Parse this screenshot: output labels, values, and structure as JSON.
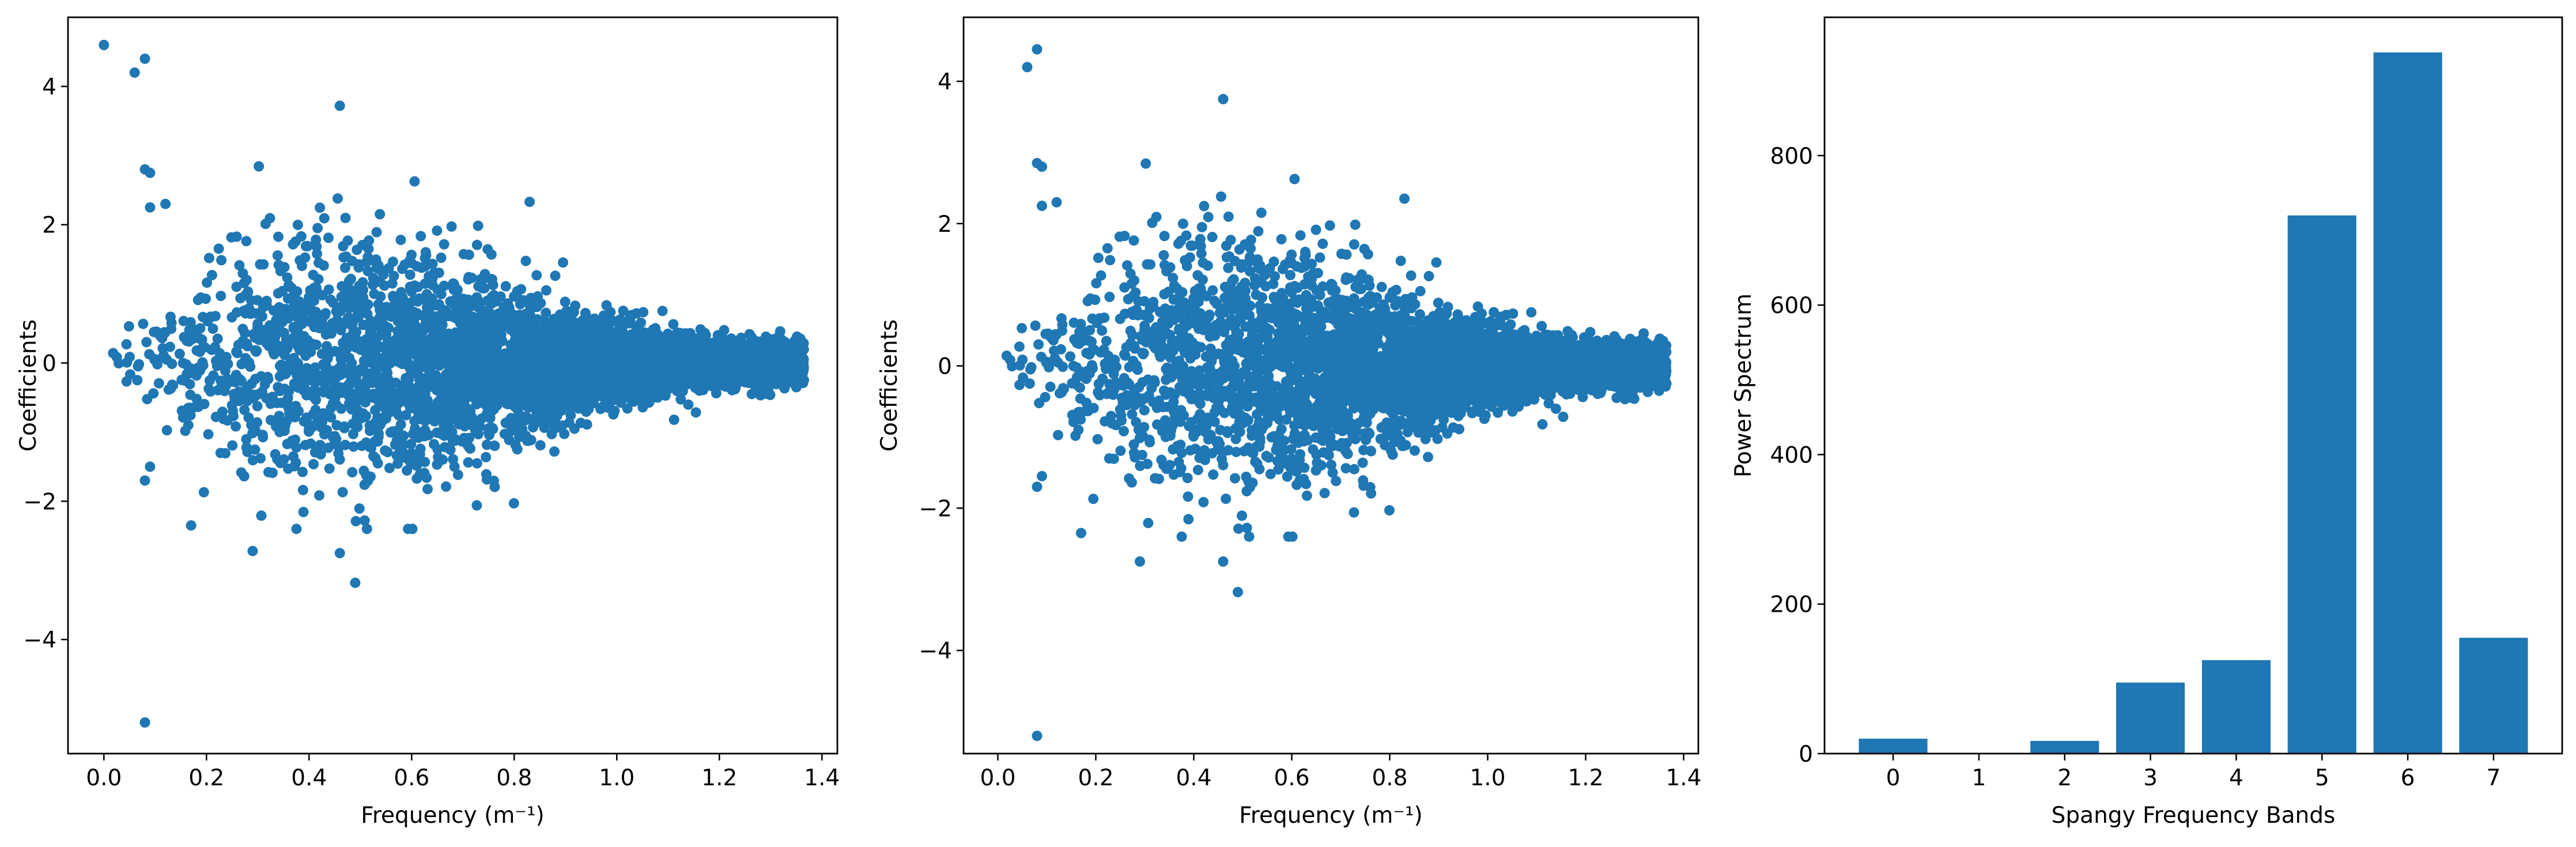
{
  "chart_data": [
    {
      "type": "scatter",
      "xlabel": "Frequency (m⁻¹)",
      "ylabel": "Coefficients",
      "xlim": [
        -0.07,
        1.43
      ],
      "ylim": [
        -5.65,
        5.0
      ],
      "xticks": [
        "0.0",
        "0.2",
        "0.4",
        "0.6",
        "0.8",
        "1.0",
        "1.2",
        "1.4"
      ],
      "yticks": [
        "−4",
        "−2",
        "0",
        "2",
        "4"
      ],
      "color": "#1f77b4",
      "point_count_estimate": 5000,
      "outliers": [
        {
          "x": 0.0,
          "y": 4.6
        },
        {
          "x": 0.06,
          "y": 4.2
        },
        {
          "x": 0.08,
          "y": 4.4
        },
        {
          "x": 0.08,
          "y": 2.8
        },
        {
          "x": 0.09,
          "y": 2.75
        },
        {
          "x": 0.09,
          "y": 2.25
        },
        {
          "x": 0.12,
          "y": 2.3
        },
        {
          "x": 0.46,
          "y": 3.72
        },
        {
          "x": 0.08,
          "y": -1.7
        },
        {
          "x": 0.09,
          "y": -1.5
        },
        {
          "x": 0.17,
          "y": -2.35
        },
        {
          "x": 0.29,
          "y": -2.72
        },
        {
          "x": 0.46,
          "y": -2.75
        },
        {
          "x": 0.49,
          "y": -3.18
        },
        {
          "x": 0.08,
          "y": -5.2
        },
        {
          "x": 0.83,
          "y": 2.33
        }
      ]
    },
    {
      "type": "scatter",
      "xlabel": "Frequency (m⁻¹)",
      "ylabel": "Coefficients",
      "xlim": [
        -0.07,
        1.43
      ],
      "ylim": [
        -5.45,
        4.9
      ],
      "xticks": [
        "0.0",
        "0.2",
        "0.4",
        "0.6",
        "0.8",
        "1.0",
        "1.2",
        "1.4"
      ],
      "yticks": [
        "−4",
        "−2",
        "0",
        "2",
        "4"
      ],
      "color": "#1f77b4",
      "point_count_estimate": 5000,
      "outliers": [
        {
          "x": 0.06,
          "y": 4.2
        },
        {
          "x": 0.08,
          "y": 4.45
        },
        {
          "x": 0.08,
          "y": 2.85
        },
        {
          "x": 0.09,
          "y": 2.8
        },
        {
          "x": 0.09,
          "y": 2.25
        },
        {
          "x": 0.12,
          "y": 2.3
        },
        {
          "x": 0.46,
          "y": 3.75
        },
        {
          "x": 0.08,
          "y": -1.7
        },
        {
          "x": 0.09,
          "y": -1.55
        },
        {
          "x": 0.17,
          "y": -2.35
        },
        {
          "x": 0.29,
          "y": -2.75
        },
        {
          "x": 0.46,
          "y": -2.75
        },
        {
          "x": 0.49,
          "y": -3.18
        },
        {
          "x": 0.08,
          "y": -5.2
        },
        {
          "x": 0.83,
          "y": 2.35
        }
      ]
    },
    {
      "type": "bar",
      "xlabel": "Spangy Frequency Bands",
      "ylabel": "Power Spectrum",
      "categories": [
        "0",
        "1",
        "2",
        "3",
        "4",
        "5",
        "6",
        "7"
      ],
      "values": [
        20,
        0,
        17,
        95,
        125,
        720,
        938,
        155
      ],
      "ylim": [
        0,
        985
      ],
      "yticks": [
        "0",
        "200",
        "400",
        "600",
        "800"
      ],
      "color": "#1f77b4"
    }
  ]
}
